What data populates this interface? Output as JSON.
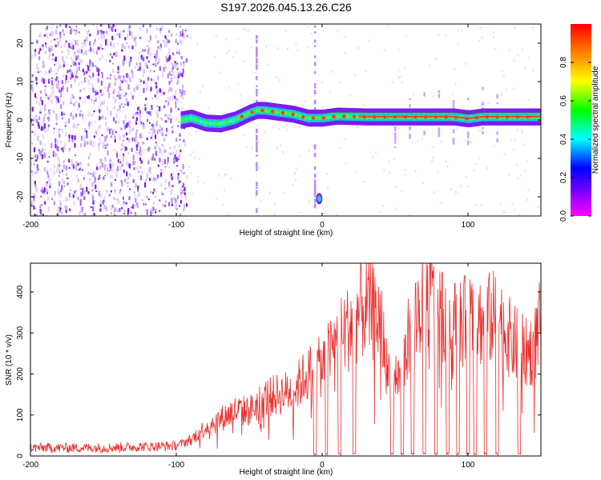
{
  "title": "S197.2026.045.13.26.C26",
  "colors": {
    "snr_line": "#e8302e",
    "spectrogram_low": "#7a1cf0",
    "ridge": "#e8302e",
    "colorbar_stops": [
      "#ff00ff",
      "#8000ff",
      "#0000ff",
      "#00ffff",
      "#00ff00",
      "#ffff00",
      "#ff8000",
      "#ff0000"
    ]
  },
  "chart_data": [
    {
      "type": "heatmap",
      "id": "spectrogram",
      "title": "",
      "xlabel": "Height of straight line (km)",
      "ylabel": "Frequency (Hz)",
      "xlim": [
        -200,
        150
      ],
      "ylim": [
        -25,
        25
      ],
      "xticks": [
        -200,
        -100,
        0,
        100
      ],
      "xtick_labels": [
        "-200",
        "-100",
        "0",
        "100"
      ],
      "yticks": [
        -20,
        -10,
        0,
        10,
        20
      ],
      "ytick_labels": [
        "-20",
        "-10",
        "0",
        "10",
        "20"
      ],
      "ridge": {
        "x": [
          -97,
          -90,
          -80,
          -70,
          -60,
          -50,
          -45,
          -40,
          -30,
          -20,
          -10,
          0,
          10,
          30,
          60,
          90,
          100,
          110,
          130,
          150
        ],
        "y": [
          0,
          0.5,
          -0.8,
          -1,
          0,
          1.8,
          2.5,
          2.5,
          2,
          1.5,
          0.5,
          0.5,
          1,
          0.8,
          0.8,
          0.8,
          0.3,
          0.8,
          0.8,
          0.8
        ]
      },
      "noise_region_x": [
        -200,
        -93
      ],
      "vertical_streaks_x": [
        -45,
        -5,
        50,
        60,
        70,
        80,
        90,
        100,
        110,
        120
      ],
      "isolated_blob": {
        "x": -2,
        "y": -20.5
      },
      "colorbar": {
        "label": "Normalized spectral amplitude",
        "range": [
          0.0,
          1.0
        ],
        "ticks": [
          0.0,
          0.2,
          0.4,
          0.6,
          0.8
        ],
        "tick_labels": [
          "0.0",
          "0.2",
          "0.4",
          "0.6",
          "0.8"
        ]
      }
    },
    {
      "type": "line",
      "id": "snr",
      "title": "",
      "xlabel": "Height of straight line (km)",
      "ylabel": "SNR (10 * v/v)",
      "xlim": [
        -200,
        150
      ],
      "ylim": [
        0,
        470
      ],
      "xticks": [
        -200,
        -100,
        0,
        100
      ],
      "xtick_labels": [
        "-200",
        "-100",
        "0",
        "100"
      ],
      "yticks": [
        0,
        100,
        200,
        300,
        400
      ],
      "ytick_labels": [
        "0",
        "100",
        "200",
        "300",
        "400"
      ],
      "envelope": {
        "x": [
          -200,
          -150,
          -100,
          -90,
          -80,
          -70,
          -60,
          -50,
          -40,
          -30,
          -20,
          -10,
          0,
          10,
          20,
          25,
          30,
          35,
          40,
          45,
          50,
          55,
          60,
          70,
          75,
          80,
          90,
          100,
          110,
          120,
          130,
          140,
          145,
          150
        ],
        "y": [
          20,
          20,
          25,
          40,
          70,
          90,
          110,
          110,
          140,
          150,
          160,
          200,
          220,
          280,
          320,
          350,
          360,
          350,
          330,
          200,
          200,
          180,
          320,
          380,
          400,
          360,
          320,
          330,
          330,
          340,
          280,
          250,
          260,
          330
        ]
      },
      "dropouts_x": [
        -5,
        3,
        12,
        22,
        48,
        55,
        62,
        70,
        78,
        86,
        93,
        100,
        105,
        112,
        120,
        135
      ]
    }
  ]
}
